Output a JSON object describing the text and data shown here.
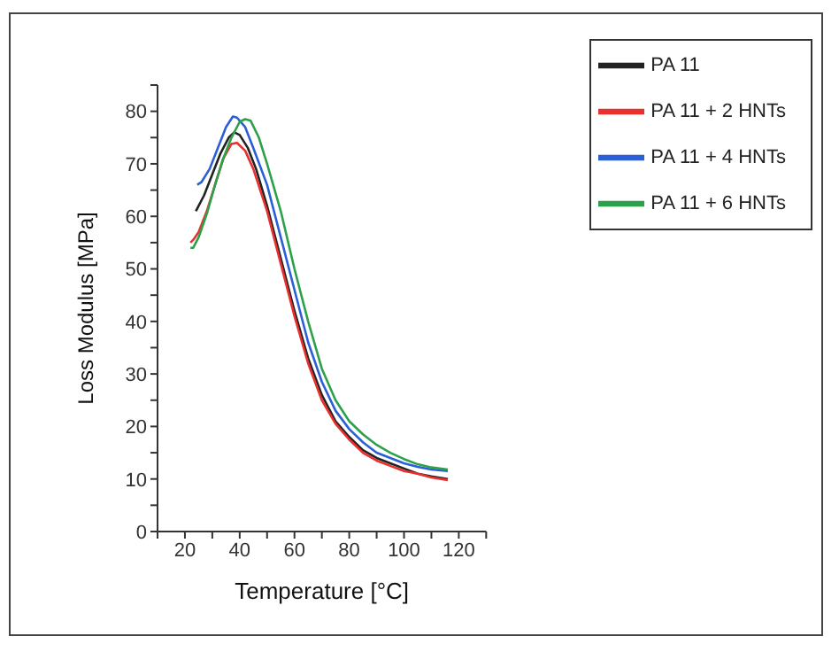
{
  "chart_data": {
    "type": "line",
    "xlabel": "Temperature [°C]",
    "ylabel": "Loss Modulus [MPa]",
    "xlim": [
      10,
      130
    ],
    "ylim": [
      0,
      85
    ],
    "xticks": [
      {
        "value": 10,
        "label": null
      },
      20,
      {
        "value": 30,
        "label": null
      },
      40,
      {
        "value": 50,
        "label": null
      },
      60,
      {
        "value": 70,
        "label": null
      },
      80,
      {
        "value": 90,
        "label": null
      },
      100,
      {
        "value": 110,
        "label": null
      },
      120,
      {
        "value": 130,
        "label": null
      }
    ],
    "yticks": [
      0,
      {
        "value": 5,
        "label": null
      },
      10,
      {
        "value": 15,
        "label": null
      },
      20,
      {
        "value": 25,
        "label": null
      },
      30,
      {
        "value": 35,
        "label": null
      },
      40,
      {
        "value": 45,
        "label": null
      },
      50,
      {
        "value": 55,
        "label": null
      },
      60,
      {
        "value": 65,
        "label": null
      },
      70,
      {
        "value": 75,
        "label": null
      },
      80,
      {
        "value": 85,
        "label": null
      }
    ],
    "grid": false,
    "legend": "top right",
    "marker": "none",
    "line_style": "solid",
    "series": [
      {
        "name": "PA 11",
        "color": "#222222",
        "x": [
          24,
          27,
          30,
          33,
          36,
          38,
          40,
          43,
          46,
          50,
          55,
          60,
          65,
          70,
          75,
          80,
          85,
          90,
          95,
          100,
          105,
          110,
          116
        ],
        "values": [
          61,
          64,
          68,
          72,
          75,
          76,
          75.5,
          73,
          69,
          62,
          52,
          42,
          33,
          26,
          21,
          18,
          15.5,
          14,
          13,
          12,
          11,
          10.5,
          10
        ]
      },
      {
        "name": "PA 11 + 2 HNTs",
        "color": "#e8312f",
        "x": [
          22,
          23,
          25,
          28,
          31,
          34,
          37,
          39,
          42,
          45,
          50,
          55,
          60,
          65,
          70,
          75,
          80,
          85,
          90,
          95,
          100,
          105,
          110,
          116
        ],
        "values": [
          55,
          55.5,
          57,
          61,
          66,
          71,
          73.8,
          74,
          72.5,
          69,
          61,
          51,
          41,
          32,
          25,
          20.5,
          17.5,
          15,
          13.5,
          12.5,
          11.5,
          11,
          10.3,
          9.8
        ]
      },
      {
        "name": "PA 11 + 4 HNTs",
        "color": "#2a5fd8",
        "x": [
          24.5,
          26,
          29,
          32,
          35,
          37.5,
          39,
          42,
          45,
          50,
          55,
          60,
          65,
          70,
          75,
          80,
          85,
          90,
          95,
          100,
          105,
          110,
          116
        ],
        "values": [
          66,
          66.5,
          69,
          73,
          77,
          79,
          78.8,
          77,
          73,
          66,
          56,
          46,
          36,
          28.5,
          23,
          19.5,
          17,
          15,
          14,
          13,
          12.3,
          11.8,
          11.5
        ]
      },
      {
        "name": "PA 11 + 6 HNTs",
        "color": "#2ca04a",
        "x": [
          22,
          23,
          25,
          28,
          31,
          34,
          37,
          40,
          42,
          44,
          47,
          50,
          55,
          60,
          65,
          70,
          75,
          80,
          85,
          90,
          95,
          100,
          105,
          110,
          116
        ],
        "values": [
          54,
          54,
          56,
          60.5,
          66,
          71,
          75,
          78,
          78.5,
          78.2,
          75,
          70,
          61,
          50,
          40,
          31,
          25,
          21,
          18.5,
          16.5,
          15,
          13.8,
          12.8,
          12.2,
          11.8
        ]
      }
    ]
  }
}
